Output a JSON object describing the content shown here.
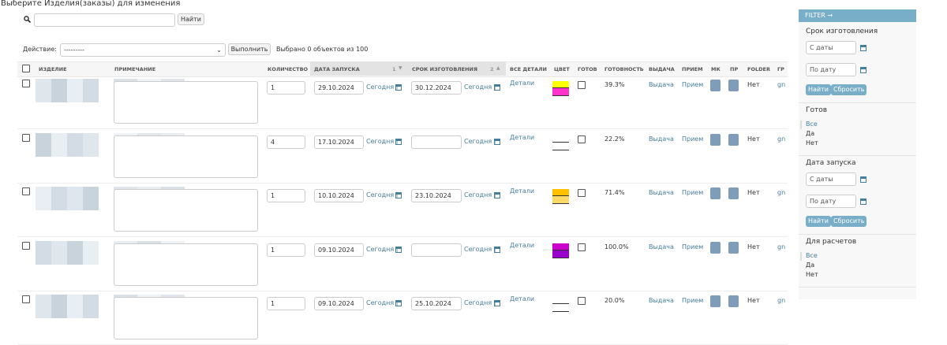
{
  "header": {
    "title": "Выберите Изделия(заказы) для изменения"
  },
  "search": {
    "button": "Найти"
  },
  "actions": {
    "label": "Действие:",
    "select": "---------",
    "button": "Выполнить",
    "selected": "Выбрано 0 объектов из 100"
  },
  "table": {
    "columns": [
      "ИЗДЕЛИЕ",
      "ПРИМЕЧАНИЕ",
      "КОЛИЧЕСТВО",
      "ДАТА ЗАПУСКА",
      "СРОК ИЗГОТОВЛЕНИЯ",
      "ВСЕ ДЕТАЛИ",
      "ЦВЕТ",
      "ГОТОВ",
      "ГОТОВНОСТЬ",
      "ВЫДАЧА",
      "ПРИЕМ",
      "МК",
      "ПР",
      "FOLDER",
      "ГР"
    ],
    "sort_marks": [
      "1",
      "2"
    ],
    "today_link": "Сегодня |",
    "details_link": "Детали",
    "issue_link": "Выдача",
    "receive_link": "Прием",
    "rows": [
      {
        "quantity": "1",
        "start": "29.10.2024",
        "deadline": "30.12.2024",
        "swatch": [
          "#ffff00",
          "#ff33cc"
        ],
        "readiness": "39.3%",
        "folder": "Нет",
        "gr": "gn"
      },
      {
        "quantity": "4",
        "start": "17.10.2024",
        "deadline": null,
        "swatch": null,
        "readiness": "22.2%",
        "folder": "Нет",
        "gr": "gn"
      },
      {
        "quantity": "1",
        "start": "10.10.2024",
        "deadline": "23.10.2024",
        "swatch": [
          "#ffc000",
          "#ffd966"
        ],
        "readiness": "71.4%",
        "folder": "Нет",
        "gr": "gn"
      },
      {
        "quantity": "1",
        "start": "09.10.2024",
        "deadline": null,
        "swatch": [
          "#cc00cc",
          "#9900cc"
        ],
        "readiness": "100.0%",
        "folder": "Нет",
        "gr": "gn"
      },
      {
        "quantity": "1",
        "start": "09.10.2024",
        "deadline": "25.10.2024",
        "swatch": null,
        "readiness": "20.0%",
        "folder": "Нет",
        "gr": "gn"
      }
    ]
  },
  "filter": {
    "title": "FILTER →",
    "groups": [
      {
        "title": "Срок изготовления",
        "from": "С даты",
        "to": "По дату",
        "apply": "Найти",
        "reset": "Сбросить"
      },
      {
        "title": "Готов",
        "options": [
          "Все",
          "Да",
          "Нет"
        ]
      },
      {
        "title": "Дата запуска",
        "from": "С даты",
        "to": "По дату",
        "apply": "Найти",
        "reset": "Сбросить"
      },
      {
        "title": "Для расчетов",
        "options": [
          "Все",
          "Да",
          "Нет"
        ]
      }
    ]
  }
}
